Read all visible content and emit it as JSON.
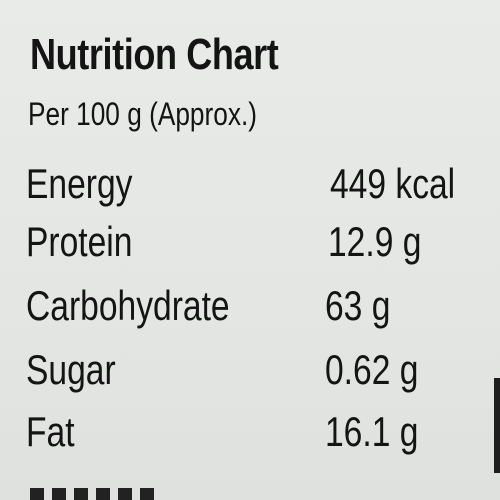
{
  "header": {
    "title": "Nutrition Chart",
    "subtitle": "Per 100 g (Approx.)"
  },
  "table": {
    "rows": [
      [
        "Energy",
        "449 kcal"
      ],
      [
        "Protein",
        "12.9 g"
      ],
      [
        "Carbohydrate",
        "63 g"
      ],
      [
        "Sugar",
        "0.62 g"
      ],
      [
        "Fat",
        "16.1 g"
      ]
    ]
  }
}
